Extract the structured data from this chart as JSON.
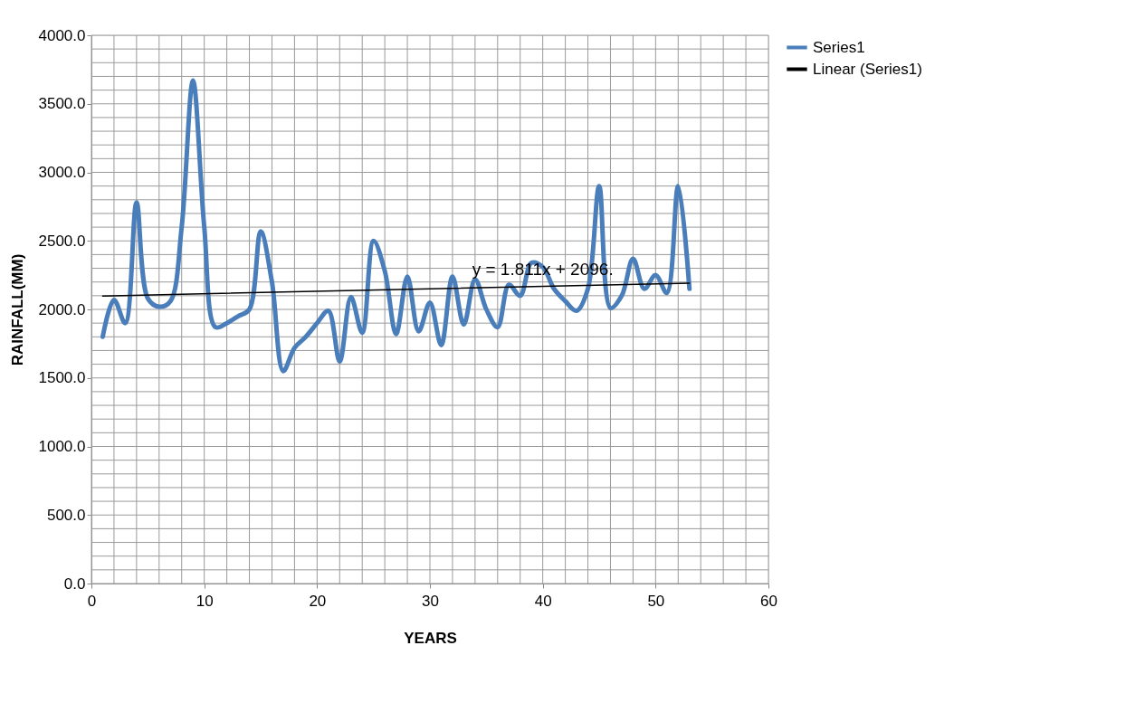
{
  "chart_data": {
    "type": "line",
    "xlabel": "YEARS",
    "ylabel": "RAINFALL(MM)",
    "x": [
      1,
      2,
      3,
      4,
      5,
      6,
      7,
      8,
      9,
      10,
      11,
      12,
      13,
      14,
      15,
      16,
      17,
      18,
      19,
      20,
      21,
      22,
      23,
      24,
      25,
      26,
      27,
      28,
      29,
      30,
      31,
      32,
      33,
      34,
      35,
      36,
      37,
      38,
      39,
      40,
      41,
      42,
      43,
      44,
      45,
      46,
      47,
      48,
      49,
      50,
      51,
      52,
      53
    ],
    "series": [
      {
        "name": "Series1",
        "color": "#4a7ebb",
        "values": [
          1800,
          2070,
          1900,
          2780,
          2080,
          2020,
          2060,
          2600,
          3670,
          2600,
          1870,
          1900,
          1950,
          2000,
          2570,
          2200,
          1550,
          1720,
          1800,
          1900,
          1990,
          1620,
          2090,
          1830,
          2500,
          2280,
          1820,
          2240,
          1840,
          2050,
          1740,
          2240,
          1890,
          2220,
          2000,
          1870,
          2180,
          2100,
          2340,
          2310,
          2150,
          2060,
          1990,
          2150,
          2900,
          2010,
          2100,
          2370,
          2150,
          2250,
          2120,
          2900,
          2150
        ]
      },
      {
        "name": "Linear (Series1)",
        "type": "line",
        "color": "#000000",
        "x": [
          1,
          53
        ],
        "values": [
          2098,
          2192
        ]
      }
    ],
    "annotations": [
      {
        "text": "y = 1.811x + 2096.",
        "x": 40,
        "y": 2290
      }
    ],
    "xlim": [
      0,
      60
    ],
    "xticks": [
      0,
      {
        "value": 2,
        "label": null
      },
      {
        "value": 4,
        "label": null
      },
      {
        "value": 6,
        "label": null
      },
      {
        "value": 8,
        "label": null
      },
      10,
      {
        "value": 12,
        "label": null
      },
      {
        "value": 14,
        "label": null
      },
      {
        "value": 16,
        "label": null
      },
      {
        "value": 18,
        "label": null
      },
      20,
      {
        "value": 22,
        "label": null
      },
      {
        "value": 24,
        "label": null
      },
      {
        "value": 26,
        "label": null
      },
      {
        "value": 28,
        "label": null
      },
      30,
      {
        "value": 32,
        "label": null
      },
      {
        "value": 34,
        "label": null
      },
      {
        "value": 36,
        "label": null
      },
      {
        "value": 38,
        "label": null
      },
      40,
      {
        "value": 42,
        "label": null
      },
      {
        "value": 44,
        "label": null
      },
      {
        "value": 46,
        "label": null
      },
      {
        "value": 48,
        "label": null
      },
      50,
      {
        "value": 52,
        "label": null
      },
      {
        "value": 54,
        "label": null
      },
      {
        "value": 56,
        "label": null
      },
      {
        "value": 58,
        "label": null
      },
      60
    ],
    "ylim": [
      0,
      4000
    ],
    "yticks": [
      {
        "value": 0,
        "label": "0.0"
      },
      {
        "value": 100,
        "label": null
      },
      {
        "value": 200,
        "label": null
      },
      {
        "value": 300,
        "label": null
      },
      {
        "value": 400,
        "label": null
      },
      {
        "value": 500,
        "label": "500.0"
      },
      {
        "value": 600,
        "label": null
      },
      {
        "value": 700,
        "label": null
      },
      {
        "value": 800,
        "label": null
      },
      {
        "value": 900,
        "label": null
      },
      {
        "value": 1000,
        "label": "1000.0"
      },
      {
        "value": 1100,
        "label": null
      },
      {
        "value": 1200,
        "label": null
      },
      {
        "value": 1300,
        "label": null
      },
      {
        "value": 1400,
        "label": null
      },
      {
        "value": 1500,
        "label": "1500.0"
      },
      {
        "value": 1600,
        "label": null
      },
      {
        "value": 1700,
        "label": null
      },
      {
        "value": 1800,
        "label": null
      },
      {
        "value": 1900,
        "label": null
      },
      {
        "value": 2000,
        "label": "2000.0"
      },
      {
        "value": 2100,
        "label": null
      },
      {
        "value": 2200,
        "label": null
      },
      {
        "value": 2300,
        "label": null
      },
      {
        "value": 2400,
        "label": null
      },
      {
        "value": 2500,
        "label": "2500.0"
      },
      {
        "value": 2600,
        "label": null
      },
      {
        "value": 2700,
        "label": null
      },
      {
        "value": 2800,
        "label": null
      },
      {
        "value": 2900,
        "label": null
      },
      {
        "value": 3000,
        "label": "3000.0"
      },
      {
        "value": 3100,
        "label": null
      },
      {
        "value": 3200,
        "label": null
      },
      {
        "value": 3300,
        "label": null
      },
      {
        "value": 3400,
        "label": null
      },
      {
        "value": 3500,
        "label": "3500.0"
      },
      {
        "value": 3600,
        "label": null
      },
      {
        "value": 3700,
        "label": null
      },
      {
        "value": 3800,
        "label": null
      },
      {
        "value": 3900,
        "label": null
      },
      {
        "value": 4000,
        "label": "4000.0"
      }
    ],
    "grid": true,
    "legend": "right",
    "marker": "none",
    "line_style": "solid"
  }
}
